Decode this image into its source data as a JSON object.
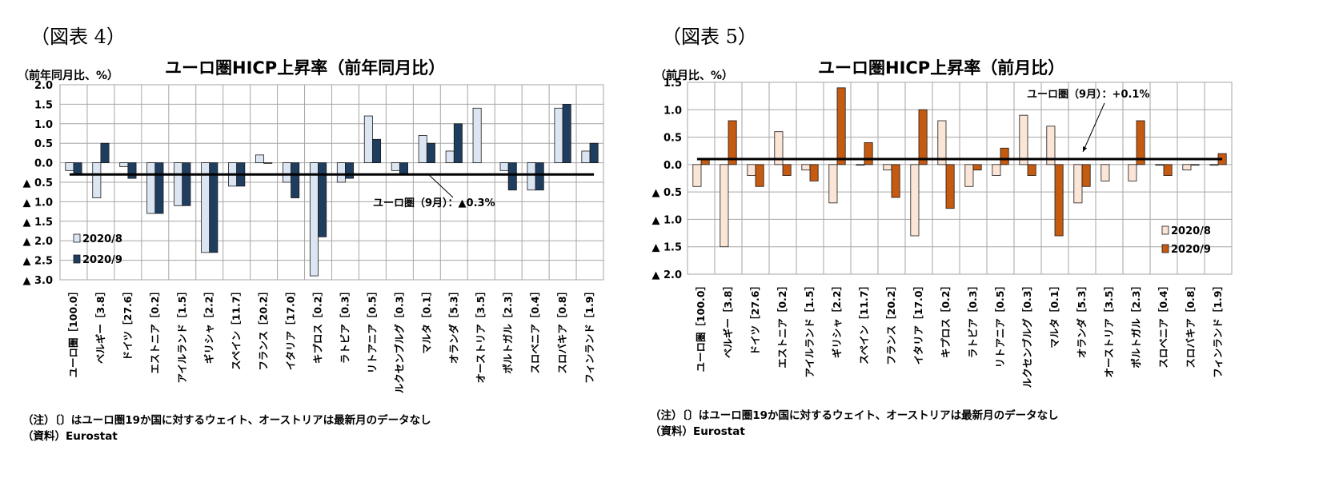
{
  "panels": [
    {
      "figure_label": "（図表 4）",
      "unit_label": "（前年同月比、%）",
      "note": "（注）〔〕はユーロ圏19か国に対するウェイト、オーストリアは最新月のデータなし",
      "source": "（資料）Eurostat"
    },
    {
      "figure_label": "（図表 5）",
      "unit_label": "（前月比、%）",
      "note": "（注）〔〕はユーロ圏19か国に対するウェイト、オーストリアは最新月のデータなし",
      "source": "（資料）Eurostat"
    }
  ],
  "chart_data": [
    {
      "type": "bar",
      "title": "ユーロ圏HICP上昇率（前年同月比）",
      "ylim": [
        -3.0,
        2.0
      ],
      "yticks": [
        2.0,
        1.5,
        1.0,
        0.5,
        0.0,
        -0.5,
        -1.0,
        -1.5,
        -2.0,
        -2.5,
        -3.0
      ],
      "ytick_labels": [
        "2.0",
        "1.5",
        "1.0",
        "0.5",
        "0.0",
        "▲ 0.5",
        "▲ 1.0",
        "▲ 1.5",
        "▲ 2.0",
        "▲ 2.5",
        "▲ 3.0"
      ],
      "grid": true,
      "legend_position": "bottom-left",
      "categories": [
        "ユーロ圏［100.0］",
        "ベルギー［3.8］",
        "ドイツ［27.6］",
        "エストニア［0.2］",
        "アイルランド［1.5］",
        "ギリシャ［2.2］",
        "スペイン［11.7］",
        "フランス［20.2］",
        "イタリア［17.0］",
        "キプロス［0.2］",
        "ラトビア［0.3］",
        "リトアニア［0.5］",
        "ルクセンブルグ［0.3］",
        "マルタ［0.1］",
        "オランダ［5.3］",
        "オーストリア［3.5］",
        "ポルトガル［2.3］",
        "スロベニア［0.4］",
        "スロバキア［0.8］",
        "フィンランド［1.9］"
      ],
      "series": [
        {
          "name": "2020/8",
          "color": "#dce6f2",
          "values": [
            -0.2,
            -0.9,
            -0.1,
            -1.3,
            -1.1,
            -2.3,
            -0.6,
            0.2,
            -0.5,
            -2.9,
            -0.5,
            1.2,
            -0.2,
            0.7,
            0.3,
            1.4,
            -0.2,
            -0.7,
            1.4,
            0.3
          ]
        },
        {
          "name": "2020/9",
          "color": "#1f3d5f",
          "values": [
            -0.3,
            0.5,
            -0.4,
            -1.3,
            -1.1,
            -2.3,
            -0.6,
            0.0,
            -0.9,
            -1.9,
            -0.4,
            0.6,
            -0.3,
            0.5,
            1.0,
            null,
            -0.7,
            -0.7,
            1.5,
            0.5
          ]
        }
      ],
      "reference_line": {
        "value": -0.3,
        "label": "ユーロ圏（9月）：▲0.3%"
      }
    },
    {
      "type": "bar",
      "title": "ユーロ圏HICP上昇率（前月比）",
      "ylim": [
        -2.0,
        1.5
      ],
      "yticks": [
        1.5,
        1.0,
        0.5,
        0.0,
        -0.5,
        -1.0,
        -1.5,
        -2.0
      ],
      "ytick_labels": [
        "1.5",
        "1.0",
        "0.5",
        "0.0",
        "▲ 0.5",
        "▲ 1.0",
        "▲ 1.5",
        "▲ 2.0"
      ],
      "grid": true,
      "legend_position": "bottom-right",
      "categories": [
        "ユーロ圏［100.0］",
        "ベルギー［3.8］",
        "ドイツ［27.6］",
        "エストニア［0.2］",
        "アイルランド［1.5］",
        "ギリシャ［2.2］",
        "スペイン［11.7］",
        "フランス［20.2］",
        "イタリア［17.0］",
        "キプロス［0.2］",
        "ラトビア［0.3］",
        "リトアニア［0.5］",
        "ルクセンブルグ［0.3］",
        "マルタ［0.1］",
        "オランダ［5.3］",
        "オーストリア［3.5］",
        "ポルトガル［2.3］",
        "スロベニア［0.4］",
        "スロバキア［0.8］",
        "フィンランド［1.9］"
      ],
      "series": [
        {
          "name": "2020/8",
          "color": "#fbe5d6",
          "values": [
            -0.4,
            -1.5,
            -0.2,
            0.6,
            -0.1,
            -0.7,
            0.0,
            -0.1,
            -1.3,
            0.8,
            -0.4,
            -0.2,
            0.9,
            0.7,
            -0.7,
            -0.3,
            -0.3,
            0.0,
            -0.1,
            0.0
          ]
        },
        {
          "name": "2020/9",
          "color": "#c55a11",
          "values": [
            0.1,
            0.8,
            -0.4,
            -0.2,
            -0.3,
            1.4,
            0.4,
            -0.6,
            1.0,
            -0.8,
            -0.1,
            0.3,
            -0.2,
            -1.3,
            -0.4,
            null,
            0.8,
            -0.2,
            0.0,
            0.2
          ]
        }
      ],
      "reference_line": {
        "value": 0.1,
        "label": "ユーロ圏（9月）：+0.1%"
      }
    }
  ]
}
